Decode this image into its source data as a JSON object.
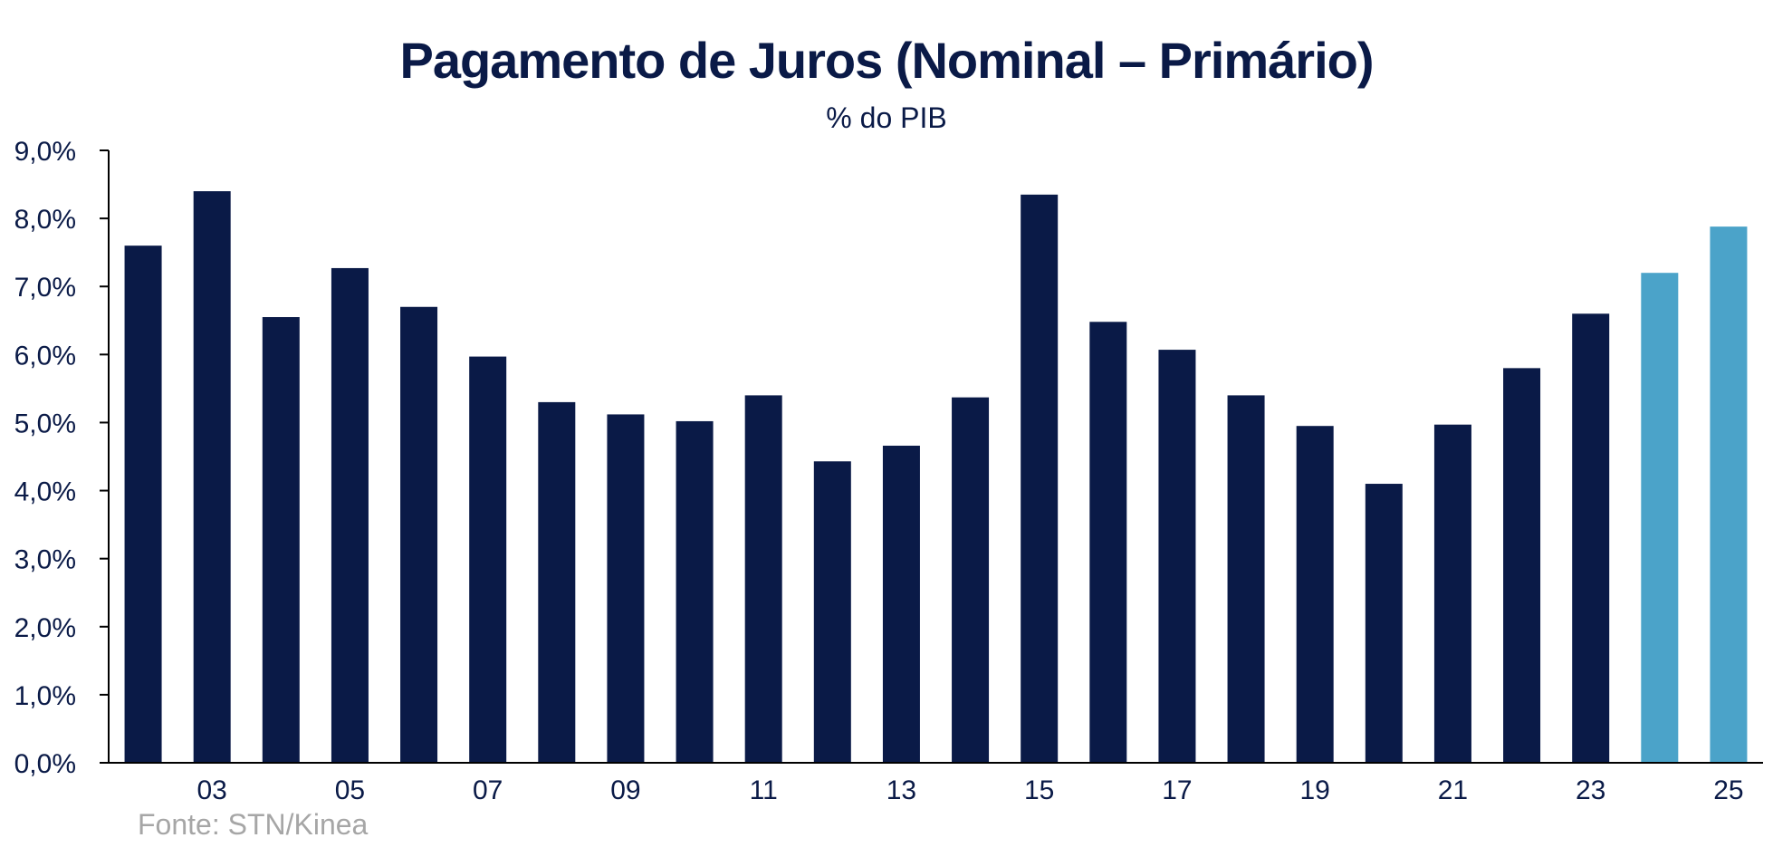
{
  "chart_data": {
    "type": "bar",
    "title": "Pagamento de Juros (Nominal – Primário)",
    "subtitle": "% do PIB",
    "source": "Fonte: STN/Kinea",
    "categories": [
      "02",
      "03",
      "04",
      "05",
      "06",
      "07",
      "08",
      "09",
      "10",
      "11",
      "12",
      "13",
      "14",
      "15",
      "16",
      "17",
      "18",
      "19",
      "20",
      "21",
      "22",
      "23",
      "24",
      "25"
    ],
    "x_tick_labels": [
      "03",
      "05",
      "07",
      "09",
      "11",
      "13",
      "15",
      "17",
      "19",
      "21",
      "23",
      "25"
    ],
    "values": [
      7.6,
      8.4,
      6.55,
      7.27,
      6.7,
      5.97,
      5.3,
      5.12,
      5.02,
      5.4,
      4.43,
      4.66,
      5.37,
      8.35,
      6.48,
      6.07,
      5.4,
      4.95,
      4.1,
      4.97,
      5.8,
      6.6,
      7.2,
      7.88
    ],
    "highlight_categories": [
      "24",
      "25"
    ],
    "ylim": [
      0,
      9
    ],
    "y_tick_values": [
      0,
      1,
      2,
      3,
      4,
      5,
      6,
      7,
      8,
      9
    ],
    "y_tick_labels": [
      "0,0%",
      "1,0%",
      "2,0%",
      "3,0%",
      "4,0%",
      "5,0%",
      "6,0%",
      "7,0%",
      "8,0%",
      "9,0%"
    ],
    "xlabel": "",
    "ylabel": "",
    "grid": false,
    "colors": {
      "bar": "#0a1a47",
      "highlight": "#4ba3c9",
      "axis": "#000000",
      "text": "#0a1a47"
    }
  }
}
